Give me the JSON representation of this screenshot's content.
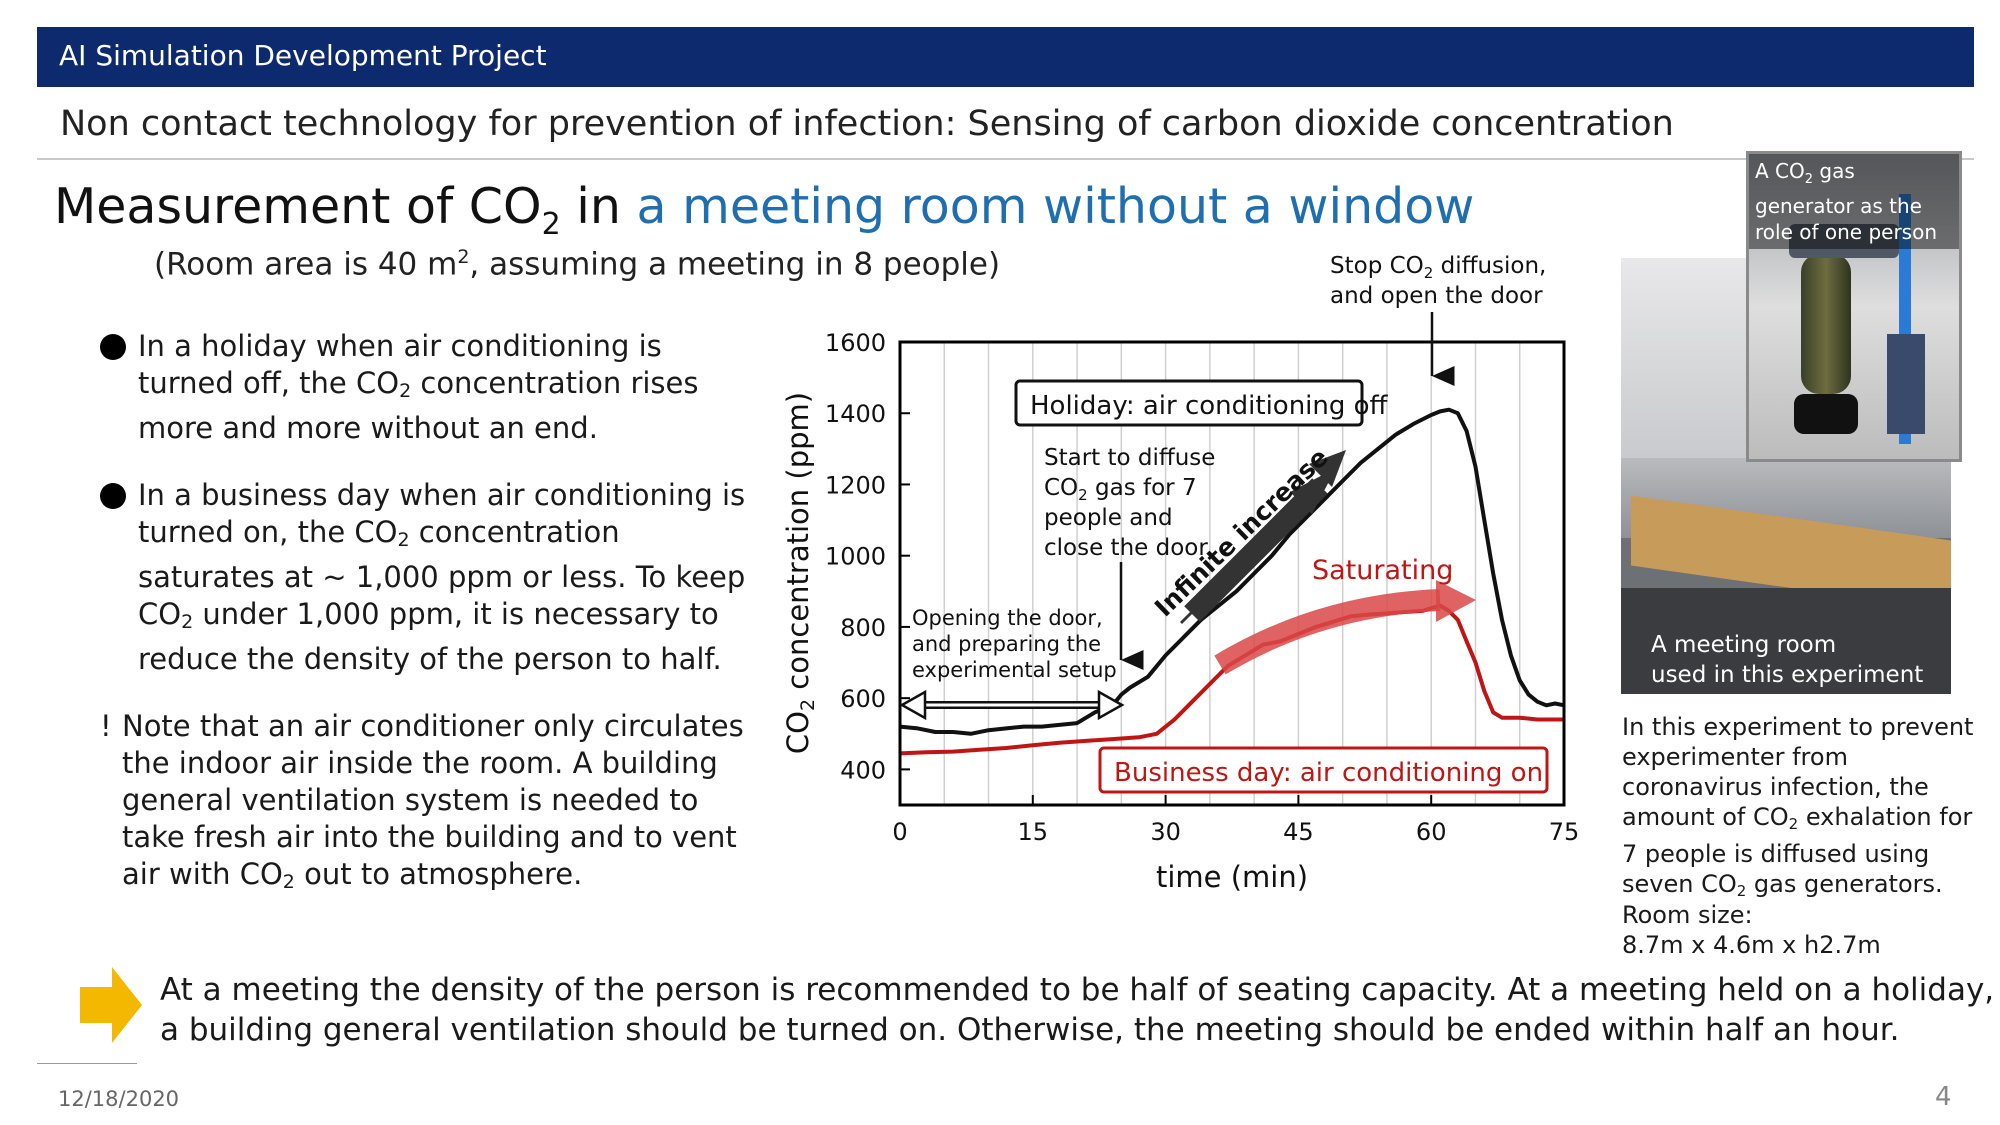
{
  "header": {
    "banner": "AI Simulation Development Project",
    "subtitle": "Non contact technology for prevention of infection:  Sensing of carbon dioxide concentration"
  },
  "title": {
    "prefix": "Measurement of CO",
    "sub": "2",
    "mid": " in ",
    "highlight": "a meeting room without a window",
    "room_note_a": "(Room area is 40 m",
    "room_note_sup": "2",
    "room_note_b": ", assuming a meeting in 8 people)"
  },
  "bullets": [
    {
      "pre": "In a holiday when air conditioning is turned off, the CO",
      "sub": "2",
      "post": " concentration rises more and more without an end."
    },
    {
      "pre": "In a business day when air conditioning is turned on, the CO",
      "sub": "2",
      "mid": " concentration saturates at ~ 1,000 ppm or less.  To keep CO",
      "sub2": "2",
      "post": " under 1,000 ppm, it is necessary to reduce the density of the person to half."
    }
  ],
  "note": {
    "bang": "!",
    "pre": "Note that an air conditioner only circulates the indoor air inside the room. A building general ventilation system is needed to take fresh air into the building and to vent air with CO",
    "sub": "2",
    "post": " out to atmosphere."
  },
  "chart_data": {
    "type": "line",
    "xlabel": "time (min)",
    "ylabel_pre": "CO",
    "ylabel_sub": "2",
    "ylabel_post": " concentration (ppm)",
    "xlim": [
      0,
      75
    ],
    "ylim": [
      300,
      1600
    ],
    "xticks": [
      0,
      15,
      30,
      45,
      60,
      75
    ],
    "yticks": [
      400,
      600,
      800,
      1000,
      1200,
      1400,
      1600
    ],
    "grid": "vertical",
    "series": [
      {
        "name": "Holiday: air conditioning off",
        "color": "#111111",
        "x": [
          0,
          2,
          4,
          6,
          8,
          10,
          12,
          14,
          16,
          18,
          20,
          22,
          24,
          25,
          26,
          28,
          30,
          32,
          34,
          36,
          38,
          40,
          42,
          44,
          46,
          48,
          50,
          52,
          54,
          56,
          58,
          60,
          61,
          62,
          63,
          64,
          65,
          66,
          67,
          68,
          69,
          70,
          71,
          72,
          73,
          74,
          75
        ],
        "y": [
          520,
          515,
          505,
          505,
          500,
          510,
          515,
          520,
          520,
          525,
          530,
          560,
          580,
          610,
          630,
          660,
          720,
          770,
          820,
          860,
          900,
          950,
          1000,
          1060,
          1110,
          1160,
          1210,
          1260,
          1300,
          1340,
          1370,
          1395,
          1405,
          1410,
          1400,
          1350,
          1250,
          1100,
          950,
          820,
          720,
          650,
          610,
          590,
          580,
          585,
          580
        ]
      },
      {
        "name": "Business day: air conditioning on",
        "color": "#c01515",
        "x": [
          0,
          3,
          6,
          9,
          12,
          15,
          18,
          21,
          24,
          27,
          29,
          31,
          33,
          35,
          37,
          39,
          41,
          43,
          45,
          47,
          49,
          51,
          53,
          55,
          57,
          59,
          61,
          62,
          63,
          64,
          65,
          66,
          67,
          68,
          70,
          72,
          75
        ],
        "y": [
          445,
          448,
          450,
          455,
          460,
          468,
          475,
          480,
          485,
          490,
          500,
          540,
          590,
          640,
          690,
          720,
          750,
          760,
          780,
          800,
          815,
          830,
          835,
          838,
          842,
          845,
          860,
          845,
          820,
          760,
          700,
          620,
          560,
          545,
          545,
          540,
          540
        ]
      }
    ],
    "annotations": {
      "stop_pre": "Stop CO",
      "stop_sub": "2",
      "stop_post": " diffusion,",
      "stop2": "and open the door",
      "holiday_label": "Holiday: air conditioning off",
      "business_label": "Business day: air conditioning on",
      "start1": "Start to diffuse",
      "start2_pre": "CO",
      "start2_sub": "2",
      "start2_post": " gas for 7",
      "start3": "people and",
      "start4": "close the door",
      "opening1": "Opening the door,",
      "opening2": "and preparing the",
      "opening3": "experimental setup",
      "infinite": "Infinite increase",
      "saturating": "Saturating"
    },
    "colors": {
      "holiday": "#111111",
      "business": "#c01515",
      "saturating_arrow": "#d94848",
      "infinite_arrow": "#333333"
    }
  },
  "photos": {
    "meeting_caption_1": "A meeting room",
    "meeting_caption_2": "used in this experiment",
    "generator_caption_pre": "A CO",
    "generator_caption_sub": "2",
    "generator_caption_post": " gas  generator as the role of one person"
  },
  "right_note": {
    "pre": "In this experiment to prevent experimenter from coronavirus infection, the amount of CO",
    "sub": "2",
    "mid": " exhalation for 7 people is diffused using seven CO",
    "sub2": "2",
    "post": " gas generators."
  },
  "room_size": {
    "label": "Room size:",
    "value": "8.7m x 4.6m x h2.7m"
  },
  "conclusion": {
    "line1": "At a meeting the density of the person is recommended to be half of seating capacity.  At a meeting held on a holiday,",
    "line2": "a building general ventilation should be turned on.  Otherwise, the meeting should be ended within half an hour.",
    "arrow_color": "#f5b800"
  },
  "footer": {
    "date": "12/18/2020",
    "page": "4"
  }
}
